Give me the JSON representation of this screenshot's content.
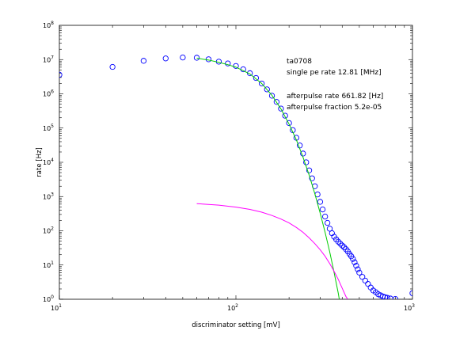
{
  "chart_data": {
    "type": "scatter",
    "title": "",
    "xlabel": "discriminator setting [mV]",
    "ylabel": "rate [Hz]",
    "xscale": "log",
    "yscale": "log",
    "xlim": [
      10,
      1000
    ],
    "ylim": [
      1,
      100000000
    ],
    "grid": false,
    "x_tick_labels": [
      {
        "base": "10",
        "exp": "1"
      },
      {
        "base": "10",
        "exp": "2"
      },
      {
        "base": "10",
        "exp": "3"
      }
    ],
    "y_tick_labels": [
      {
        "base": "10",
        "exp": "0"
      },
      {
        "base": "10",
        "exp": "1"
      },
      {
        "base": "10",
        "exp": "2"
      },
      {
        "base": "10",
        "exp": "3"
      },
      {
        "base": "10",
        "exp": "4"
      },
      {
        "base": "10",
        "exp": "5"
      },
      {
        "base": "10",
        "exp": "6"
      },
      {
        "base": "10",
        "exp": "7"
      },
      {
        "base": "10",
        "exp": "8"
      }
    ],
    "annotations": {
      "line1": "ta0708",
      "line2": "single pe rate 12.81 [MHz]",
      "line3": "afterpulse rate 661.82 [Hz]",
      "line4": "afterpulse fraction 5.2e-05"
    },
    "series": [
      {
        "marker": "circle",
        "color": "#0000ff",
        "points": [
          [
            10,
            3600000
          ],
          [
            20,
            6100000
          ],
          [
            30,
            9200000
          ],
          [
            40,
            10800000
          ],
          [
            50,
            11500000
          ],
          [
            60,
            11300000
          ],
          [
            70,
            10200000
          ],
          [
            80,
            8700000
          ],
          [
            90,
            7700000
          ],
          [
            100,
            6500000
          ],
          [
            110,
            5200000
          ],
          [
            120,
            4000000
          ],
          [
            130,
            2900000
          ],
          [
            140,
            2000000
          ],
          [
            150,
            1350000
          ],
          [
            160,
            880000
          ],
          [
            170,
            580000
          ],
          [
            180,
            370000
          ],
          [
            190,
            230000
          ],
          [
            200,
            140000
          ],
          [
            210,
            87000
          ],
          [
            220,
            52000
          ],
          [
            230,
            31000
          ],
          [
            240,
            18000
          ],
          [
            250,
            10000
          ],
          [
            260,
            5800.0
          ],
          [
            270,
            3400
          ],
          [
            280,
            2000
          ],
          [
            290,
            1150
          ],
          [
            300,
            700
          ],
          [
            310,
            420
          ],
          [
            320,
            260
          ],
          [
            330,
            170
          ],
          [
            340,
            115
          ],
          [
            350,
            85
          ],
          [
            360,
            67
          ],
          [
            370,
            56
          ],
          [
            380,
            48
          ],
          [
            390,
            42
          ],
          [
            400,
            37
          ],
          [
            410,
            33
          ],
          [
            420,
            29
          ],
          [
            430,
            25
          ],
          [
            440,
            21
          ],
          [
            450,
            18
          ],
          [
            460,
            15
          ],
          [
            470,
            12
          ],
          [
            480,
            9.5
          ],
          [
            490,
            7.5
          ],
          [
            500,
            6
          ],
          [
            520,
            4.5
          ],
          [
            540,
            3.5
          ],
          [
            560,
            2.8
          ],
          [
            580,
            2.2
          ],
          [
            600,
            1.8
          ],
          [
            620,
            1.6
          ],
          [
            640,
            1.4
          ],
          [
            660,
            1.3
          ],
          [
            680,
            1.2
          ],
          [
            700,
            1.15
          ],
          [
            720,
            1.1
          ],
          [
            750,
            1.05
          ],
          [
            800,
            1.02
          ],
          [
            1000,
            1.5
          ]
        ]
      },
      {
        "marker": "none",
        "line": "solid",
        "color": "#00cc00",
        "points": [
          [
            60,
            11000000
          ],
          [
            70,
            9700000
          ],
          [
            80,
            8300000
          ],
          [
            90,
            7100000
          ],
          [
            100,
            6000000
          ],
          [
            120,
            3800000
          ],
          [
            140,
            2000000
          ],
          [
            160,
            900000
          ],
          [
            180,
            360000
          ],
          [
            200,
            130000
          ],
          [
            220,
            45000
          ],
          [
            240,
            14000
          ],
          [
            260,
            4200
          ],
          [
            280,
            1200
          ],
          [
            300,
            330
          ],
          [
            320,
            90
          ],
          [
            340,
            24
          ],
          [
            360,
            6
          ],
          [
            380,
            1.5
          ],
          [
            385,
            1
          ]
        ]
      },
      {
        "marker": "none",
        "line": "solid",
        "color": "#ff00ff",
        "points": [
          [
            60,
            620
          ],
          [
            80,
            560
          ],
          [
            100,
            490
          ],
          [
            120,
            420
          ],
          [
            140,
            350
          ],
          [
            160,
            280
          ],
          [
            180,
            220
          ],
          [
            200,
            170
          ],
          [
            220,
            125
          ],
          [
            240,
            90
          ],
          [
            260,
            62
          ],
          [
            280,
            42
          ],
          [
            300,
            28
          ],
          [
            320,
            18
          ],
          [
            340,
            11
          ],
          [
            360,
            6.5
          ],
          [
            380,
            3.8
          ],
          [
            400,
            2.1
          ],
          [
            420,
            1.2
          ],
          [
            430,
            1
          ]
        ]
      }
    ]
  }
}
